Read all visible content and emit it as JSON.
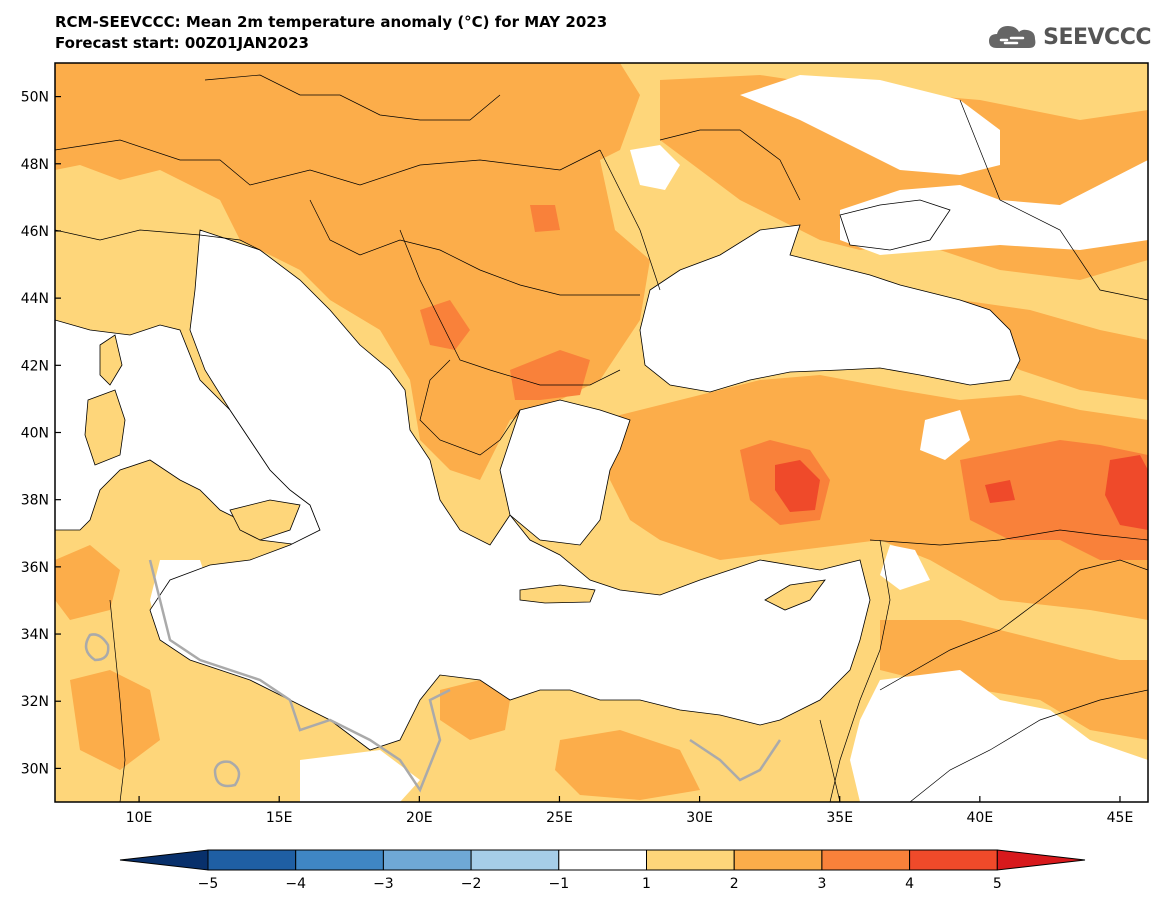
{
  "header": {
    "title": "RCM-SEEVCCC: Mean 2m temperature anomaly (°C) for MAY 2023",
    "subtitle": "Forecast start: 00Z01JAN2023"
  },
  "logo": {
    "text": "SEEVCCC",
    "icon": "cloud-logo-icon"
  },
  "map": {
    "lat_range": [
      29,
      51
    ],
    "lon_range": [
      7,
      46
    ],
    "lat_labels": [
      "50N",
      "48N",
      "46N",
      "44N",
      "42N",
      "40N",
      "38N",
      "36N",
      "34N",
      "32N",
      "30N"
    ],
    "lon_labels": [
      "10E",
      "15E",
      "20E",
      "25E",
      "30E",
      "35E",
      "40E",
      "45E"
    ]
  },
  "colorbar": {
    "tick_labels": [
      "-5",
      "-4",
      "-3",
      "-2",
      "-1",
      "1",
      "2",
      "3",
      "4",
      "5"
    ],
    "colors": [
      "#08306b",
      "#1f5fa3",
      "#3f86c4",
      "#6fa8d6",
      "#a6cde8",
      "#ffffff",
      "#fed67a",
      "#fcad4a",
      "#f9813a",
      "#ef4a2a",
      "#d7191c"
    ]
  },
  "legend": {
    "colors": {
      "sea": "#ffffff",
      "land_1_2": "#fed67a",
      "land_2_3": "#fcad4a",
      "land_3_4": "#f9813a",
      "land_4_5": "#ef4a2a",
      "zero_contour": "#aaaaaa",
      "border": "#000000"
    }
  }
}
